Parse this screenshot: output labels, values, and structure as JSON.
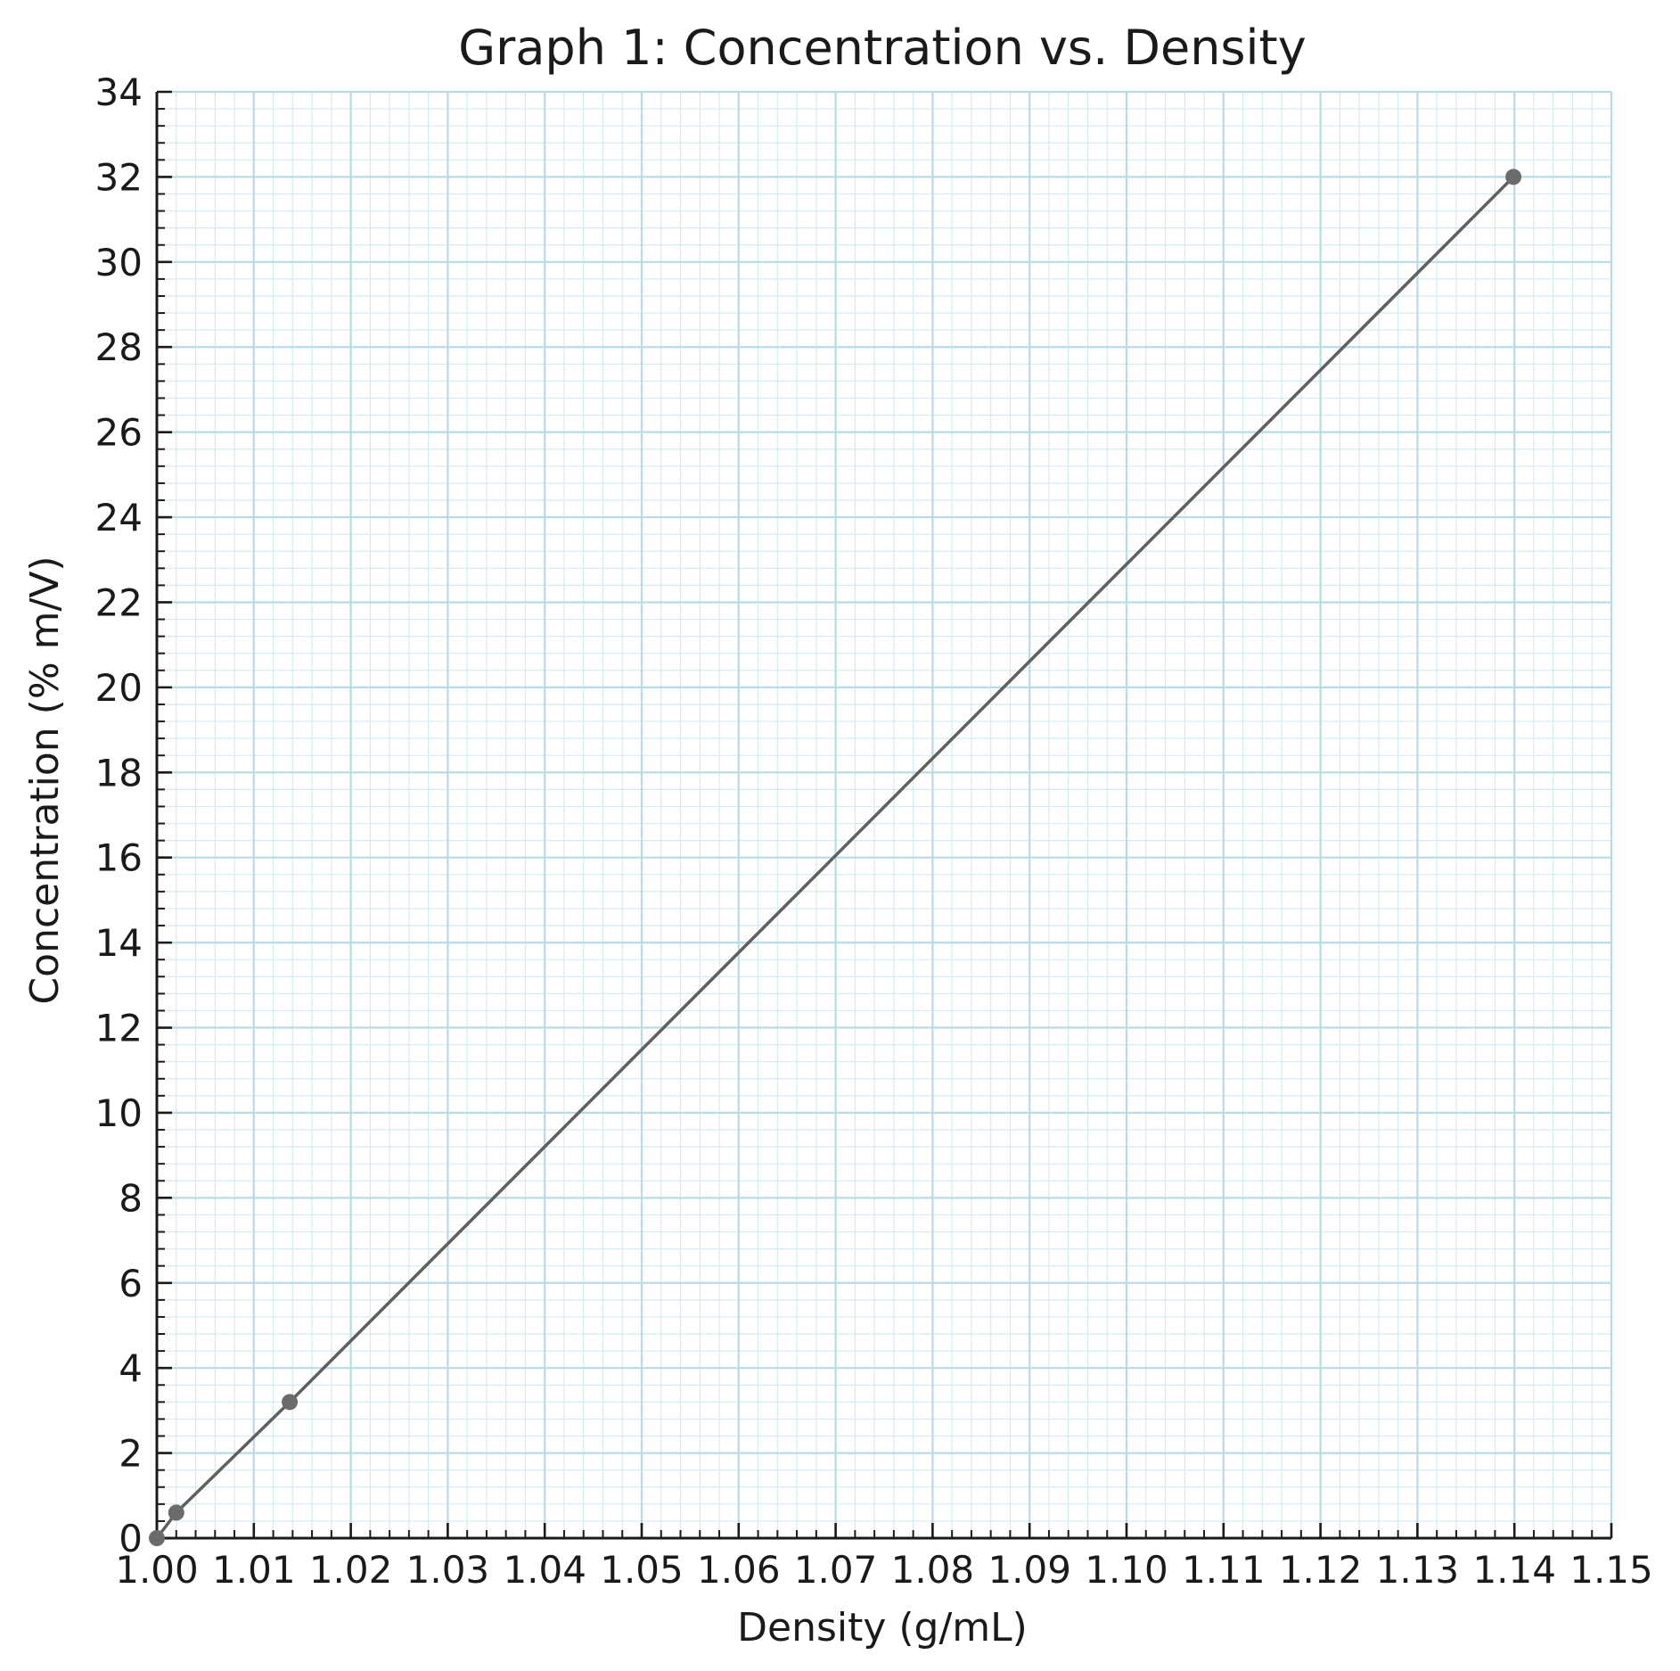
{
  "chart_data": {
    "type": "line",
    "title": "Graph 1: Concentration vs. Density",
    "xlabel": "Density (g/mL)",
    "ylabel": "Concentration (% m/V)",
    "xlim": [
      1.0,
      1.15
    ],
    "ylim": [
      0,
      34
    ],
    "x_ticks": [
      1.0,
      1.01,
      1.02,
      1.03,
      1.04,
      1.05,
      1.06,
      1.07,
      1.08,
      1.09,
      1.1,
      1.11,
      1.12,
      1.13,
      1.14,
      1.15
    ],
    "x_tick_labels": [
      "1.00",
      "1.01",
      "1.02",
      "1.03",
      "1.04",
      "1.05",
      "1.06",
      "1.07",
      "1.08",
      "1.09",
      "1.10",
      "1.11",
      "1.12",
      "1.13",
      "1.14",
      "1.15"
    ],
    "y_ticks": [
      0,
      2,
      4,
      6,
      8,
      10,
      12,
      14,
      16,
      18,
      20,
      22,
      24,
      26,
      28,
      30,
      32,
      34
    ],
    "y_tick_labels": [
      "0",
      "2",
      "4",
      "6",
      "8",
      "10",
      "12",
      "14",
      "16",
      "18",
      "20",
      "22",
      "24",
      "26",
      "28",
      "30",
      "32",
      "34"
    ],
    "grid": true,
    "series": [
      {
        "color": "#5f5f5f",
        "marker_color": "#6b6b6b",
        "points": [
          {
            "x": 1.0,
            "y": 0.0
          },
          {
            "x": 1.002,
            "y": 0.6
          },
          {
            "x": 1.0137,
            "y": 3.2
          },
          {
            "x": 1.1399,
            "y": 32.0
          }
        ]
      }
    ],
    "colors": {
      "grid_major": "#b8dce6",
      "grid_minor": "#d4ebf1",
      "axis": "#1a1a1a"
    }
  }
}
